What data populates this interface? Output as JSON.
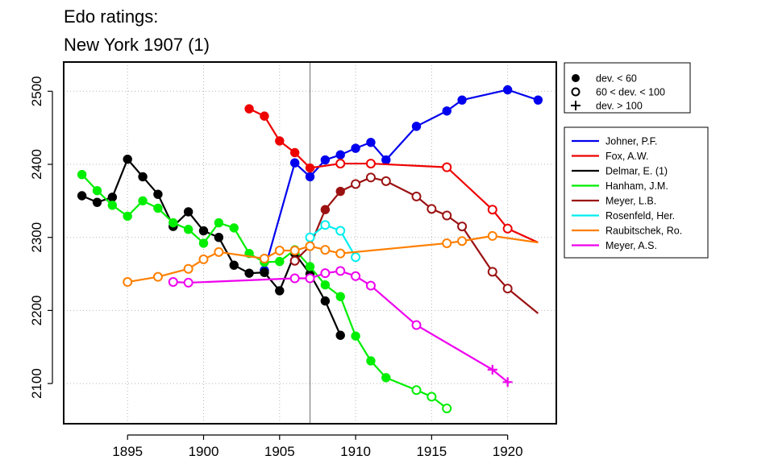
{
  "chart_data": {
    "type": "line",
    "title_lines": [
      "Edo ratings:",
      "New York 1907 (1)"
    ],
    "xlabel": "",
    "ylabel": "",
    "xlim": [
      1890.8,
      1923.2
    ],
    "ylim": [
      2045,
      2540
    ],
    "x_ticks": [
      1895,
      1900,
      1905,
      1910,
      1915,
      1920
    ],
    "y_ticks": [
      2100,
      2200,
      2300,
      2400,
      2500
    ],
    "grid": true,
    "reference_line_x": 1907,
    "marker_legend": [
      {
        "symbol": "filled",
        "label": "dev. < 60"
      },
      {
        "symbol": "open",
        "label": "60 < dev. < 100"
      },
      {
        "symbol": "plus",
        "label": "dev. > 100"
      }
    ],
    "series": [
      {
        "name": "Johner, P.F.",
        "color": "#0000ee",
        "points": [
          [
            1904,
            2255,
            "filled"
          ],
          [
            1906,
            2402,
            "filled"
          ],
          [
            1907,
            2383,
            "filled"
          ],
          [
            1908,
            2406,
            "filled"
          ],
          [
            1909,
            2413,
            "filled"
          ],
          [
            1910,
            2422,
            "filled"
          ],
          [
            1911,
            2430,
            "filled"
          ],
          [
            1912,
            2406,
            "filled"
          ],
          [
            1914,
            2452,
            "filled"
          ],
          [
            1916,
            2473,
            "filled"
          ],
          [
            1917,
            2488,
            "filled"
          ],
          [
            1920,
            2502,
            "filled"
          ],
          [
            1922,
            2488,
            "filled"
          ]
        ]
      },
      {
        "name": "Fox, A.W.",
        "color": "#ee0000",
        "points": [
          [
            1903,
            2476,
            "filled"
          ],
          [
            1904,
            2466,
            "filled"
          ],
          [
            1905,
            2432,
            "filled"
          ],
          [
            1906,
            2416,
            "filled"
          ],
          [
            1907,
            2395,
            "filled"
          ],
          [
            1909,
            2401,
            "open"
          ],
          [
            1911,
            2401,
            "open"
          ],
          [
            1916,
            2396,
            "open"
          ],
          [
            1919,
            2338,
            "open"
          ],
          [
            1920,
            2312,
            "open"
          ],
          [
            1922,
            2293,
            "none"
          ]
        ]
      },
      {
        "name": "Delmar, E. (1)",
        "color": "#000000",
        "points": [
          [
            1892,
            2357,
            "filled"
          ],
          [
            1893,
            2348,
            "filled"
          ],
          [
            1894,
            2355,
            "filled"
          ],
          [
            1895,
            2407,
            "filled"
          ],
          [
            1896,
            2383,
            "filled"
          ],
          [
            1897,
            2359,
            "filled"
          ],
          [
            1898,
            2315,
            "filled"
          ],
          [
            1899,
            2335,
            "filled"
          ],
          [
            1900,
            2309,
            "filled"
          ],
          [
            1901,
            2300,
            "filled"
          ],
          [
            1902,
            2262,
            "filled"
          ],
          [
            1903,
            2251,
            "filled"
          ],
          [
            1904,
            2252,
            "filled"
          ],
          [
            1905,
            2227,
            "filled"
          ],
          [
            1906,
            2278,
            "filled"
          ],
          [
            1907,
            2250,
            "filled"
          ],
          [
            1908,
            2213,
            "filled"
          ],
          [
            1909,
            2166,
            "filled"
          ]
        ]
      },
      {
        "name": "Hanham, J.M.",
        "color": "#00ee00",
        "points": [
          [
            1892,
            2386,
            "filled"
          ],
          [
            1893,
            2364,
            "filled"
          ],
          [
            1894,
            2344,
            "filled"
          ],
          [
            1895,
            2329,
            "filled"
          ],
          [
            1896,
            2350,
            "filled"
          ],
          [
            1897,
            2340,
            "filled"
          ],
          [
            1898,
            2320,
            "filled"
          ],
          [
            1899,
            2311,
            "filled"
          ],
          [
            1900,
            2292,
            "filled"
          ],
          [
            1901,
            2320,
            "filled"
          ],
          [
            1902,
            2313,
            "filled"
          ],
          [
            1903,
            2278,
            "filled"
          ],
          [
            1904,
            2266,
            "filled"
          ],
          [
            1905,
            2267,
            "filled"
          ],
          [
            1906,
            2283,
            "filled"
          ],
          [
            1907,
            2260,
            "filled"
          ],
          [
            1908,
            2235,
            "filled"
          ],
          [
            1909,
            2219,
            "filled"
          ],
          [
            1910,
            2165,
            "filled"
          ],
          [
            1911,
            2131,
            "filled"
          ],
          [
            1912,
            2108,
            "filled"
          ],
          [
            1914,
            2091,
            "open"
          ],
          [
            1915,
            2082,
            "open"
          ],
          [
            1916,
            2066,
            "open"
          ]
        ]
      },
      {
        "name": "Meyer, L.B.",
        "color": "#9b1111",
        "points": [
          [
            1906,
            2268,
            "open"
          ],
          [
            1907,
            2288,
            "filled"
          ],
          [
            1908,
            2338,
            "filled"
          ],
          [
            1909,
            2363,
            "filled"
          ],
          [
            1910,
            2373,
            "open"
          ],
          [
            1911,
            2382,
            "open"
          ],
          [
            1912,
            2377,
            "open"
          ],
          [
            1914,
            2356,
            "open"
          ],
          [
            1915,
            2339,
            "open"
          ],
          [
            1916,
            2330,
            "open"
          ],
          [
            1917,
            2315,
            "open"
          ],
          [
            1919,
            2253,
            "open"
          ],
          [
            1920,
            2230,
            "open"
          ],
          [
            1922,
            2196,
            "none"
          ]
        ]
      },
      {
        "name": "Rosenfeld, Her.",
        "color": "#00eeee",
        "points": [
          [
            1907,
            2300,
            "open"
          ],
          [
            1908,
            2317,
            "open"
          ],
          [
            1909,
            2309,
            "open"
          ],
          [
            1910,
            2273,
            "open"
          ]
        ]
      },
      {
        "name": "Raubitschek, Ro.",
        "color": "#ff7f00",
        "points": [
          [
            1895,
            2239,
            "open"
          ],
          [
            1897,
            2246,
            "open"
          ],
          [
            1899,
            2257,
            "open"
          ],
          [
            1900,
            2270,
            "open"
          ],
          [
            1901,
            2280,
            "open"
          ],
          [
            1904,
            2271,
            "open"
          ],
          [
            1905,
            2282,
            "open"
          ],
          [
            1906,
            2282,
            "open"
          ],
          [
            1907,
            2288,
            "open"
          ],
          [
            1908,
            2283,
            "open"
          ],
          [
            1909,
            2278,
            "open"
          ],
          [
            1916,
            2292,
            "open"
          ],
          [
            1917,
            2295,
            "open"
          ],
          [
            1919,
            2302,
            "open"
          ],
          [
            1922,
            2293,
            "none"
          ]
        ]
      },
      {
        "name": "Meyer, A.S.",
        "color": "#ee00ee",
        "points": [
          [
            1898,
            2239,
            "open"
          ],
          [
            1899,
            2238,
            "open"
          ],
          [
            1906,
            2244,
            "open"
          ],
          [
            1907,
            2244,
            "open"
          ],
          [
            1908,
            2251,
            "open"
          ],
          [
            1909,
            2254,
            "open"
          ],
          [
            1910,
            2247,
            "open"
          ],
          [
            1911,
            2234,
            "open"
          ],
          [
            1914,
            2180,
            "open"
          ],
          [
            1919,
            2119,
            "plus"
          ],
          [
            1920,
            2102,
            "plus"
          ]
        ]
      }
    ]
  }
}
